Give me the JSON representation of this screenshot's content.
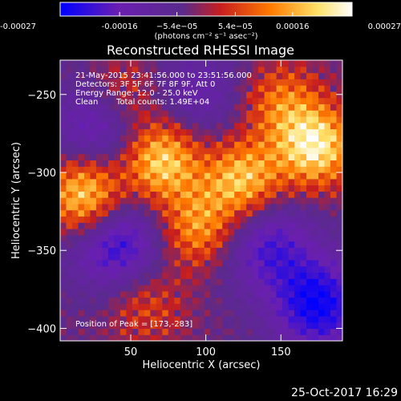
{
  "chart_data": {
    "type": "heatmap",
    "title": "Reconstructed RHESSI Image",
    "xlabel": "Heliocentric X (arcsec)",
    "ylabel": "Heliocentric Y (arcsec)",
    "xlim": [
      3,
      191
    ],
    "ylim": [
      -408,
      -228
    ],
    "x_ticks": [
      50,
      100,
      150
    ],
    "y_ticks": [
      -250,
      -300,
      -350,
      -400
    ],
    "colorbar": {
      "unit_label": "(photons cm⁻² s⁻¹ asec⁻²)",
      "range": [
        -0.00027,
        0.00027
      ],
      "tick_values": [
        -0.00027,
        -0.00016,
        -5.4e-05,
        5.4e-05,
        0.00016,
        0.00027
      ],
      "tick_labels": [
        "-0.00027",
        "-0.00016",
        "−5.4e−05",
        "5.4e−05",
        "0.00016",
        "0.00027"
      ],
      "colors": [
        "#0000ff",
        "#6a1fb0",
        "#5a2a8c",
        "#c81e1e",
        "#ff7a00",
        "#ffe066",
        "#ffffff"
      ]
    },
    "annotations": {
      "time_range": "21-May-2015 23:41:56.000 to 23:51:56.000",
      "detectors": "Detectors: 3F 5F 6F 7F 8F 9F, Att 0",
      "energy_range": "Energy Range: 12.0 - 25.0 keV",
      "algorithm": "Clean",
      "total_counts": "Total counts: 1.49E+04",
      "peak_position": "Position of Peak = [173,-283]"
    },
    "sources": [
      {
        "x": 20,
        "y": -315,
        "intensity": 0.00027
      },
      {
        "x": 70,
        "y": -292,
        "intensity": 0.00025
      },
      {
        "x": 125,
        "y": -305,
        "intensity": 0.00023
      },
      {
        "x": 173,
        "y": -283,
        "intensity": 0.00027
      },
      {
        "x": 95,
        "y": -335,
        "intensity": 0.00018
      },
      {
        "x": 150,
        "y": -255,
        "intensity": 0.00014
      },
      {
        "x": 45,
        "y": -250,
        "intensity": 0.00012
      },
      {
        "x": 60,
        "y": -385,
        "intensity": 0.0001
      }
    ],
    "negative_regions": [
      {
        "x": 30,
        "y": -270,
        "intensity": -0.00016
      },
      {
        "x": 95,
        "y": -250,
        "intensity": -0.0001
      },
      {
        "x": 40,
        "y": -345,
        "intensity": -0.0002
      },
      {
        "x": 140,
        "y": -345,
        "intensity": -0.00016
      },
      {
        "x": 175,
        "y": -385,
        "intensity": -0.00022
      }
    ]
  },
  "footer": {
    "timestamp": "25-Oct-2017 16:29"
  }
}
